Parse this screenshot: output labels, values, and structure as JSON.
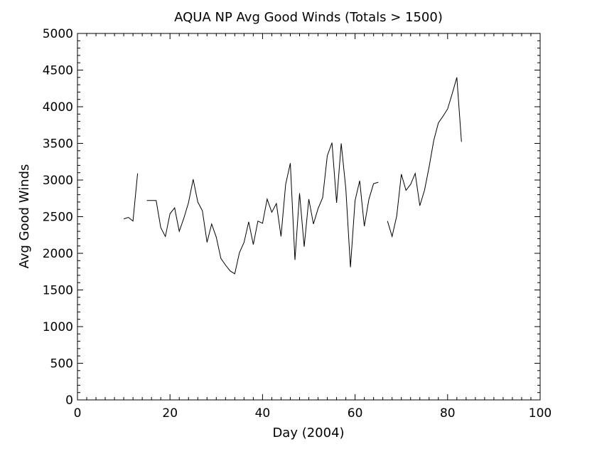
{
  "chart_data": {
    "type": "line",
    "title": "AQUA NP Avg Good Winds (Totals > 1500)",
    "xlabel": "Day (2004)",
    "ylabel": "Avg Good Winds",
    "xlim": [
      0,
      100
    ],
    "ylim": [
      0,
      5000
    ],
    "x_ticks": [
      0,
      20,
      40,
      60,
      80,
      100
    ],
    "y_ticks": [
      0,
      500,
      1000,
      1500,
      2000,
      2500,
      3000,
      3500,
      4000,
      4500,
      5000
    ],
    "grid": false,
    "line_color": "#000000",
    "segments": [
      {
        "x": [
          10,
          11,
          12,
          13
        ],
        "y": [
          2470,
          2490,
          2440,
          3090
        ]
      },
      {
        "x": [
          15,
          16,
          17,
          18,
          19,
          20,
          21,
          22,
          23,
          24,
          25,
          26,
          27,
          28,
          29,
          30,
          31,
          32,
          33,
          34,
          35,
          36,
          37,
          38,
          39,
          40,
          41,
          42,
          43,
          44,
          45,
          46,
          47,
          48,
          49,
          50,
          51,
          52,
          53,
          54,
          55,
          56,
          57,
          58,
          59,
          60,
          61,
          62,
          63,
          64,
          65
        ],
        "y": [
          2720,
          2720,
          2720,
          2350,
          2230,
          2540,
          2620,
          2300,
          2480,
          2690,
          3010,
          2700,
          2580,
          2150,
          2400,
          2220,
          1930,
          1840,
          1760,
          1720,
          2010,
          2150,
          2430,
          2120,
          2440,
          2410,
          2740,
          2560,
          2680,
          2230,
          2940,
          3230,
          1910,
          2820,
          2090,
          2740,
          2400,
          2610,
          2760,
          3330,
          3510,
          2690,
          3500,
          2880,
          1810,
          2720,
          2990,
          2370,
          2740,
          2950,
          2970
        ]
      },
      {
        "x": [
          67,
          68,
          69,
          70,
          71,
          72,
          73,
          74,
          75,
          76,
          77,
          78,
          79,
          80,
          81,
          82,
          83
        ],
        "y": [
          2440,
          2230,
          2510,
          3080,
          2860,
          2940,
          3090,
          2650,
          2860,
          3180,
          3540,
          3780,
          3870,
          3970,
          4180,
          4400,
          3520
        ]
      }
    ]
  }
}
